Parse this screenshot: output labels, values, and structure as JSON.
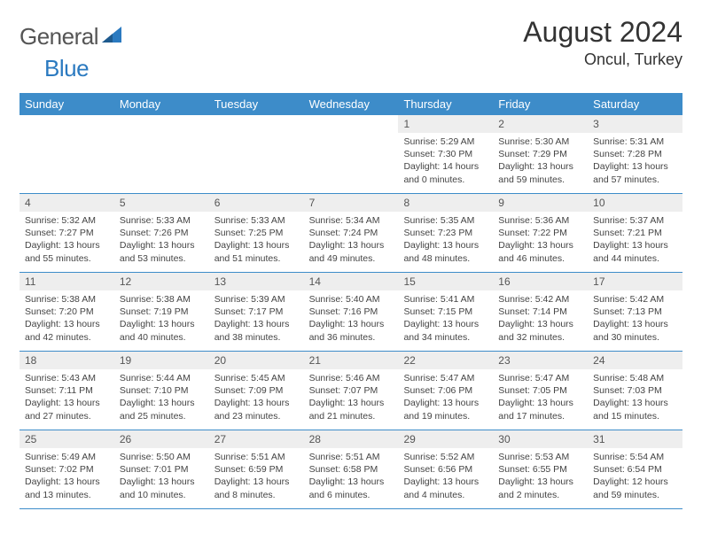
{
  "logo": {
    "text1": "General",
    "text2": "Blue"
  },
  "title": "August 2024",
  "location": "Oncul, Turkey",
  "colors": {
    "header_bg": "#3d8cc9",
    "header_text": "#ffffff",
    "daynum_bg": "#eeeeee",
    "daynum_text": "#555555",
    "detail_text": "#444444",
    "week_border": "#3d8cc9",
    "logo_gray": "#555555",
    "logo_blue": "#2b7ac0"
  },
  "day_names": [
    "Sunday",
    "Monday",
    "Tuesday",
    "Wednesday",
    "Thursday",
    "Friday",
    "Saturday"
  ],
  "weeks": [
    [
      null,
      null,
      null,
      null,
      {
        "n": "1",
        "sr": "5:29 AM",
        "ss": "7:30 PM",
        "dl": "14 hours and 0 minutes."
      },
      {
        "n": "2",
        "sr": "5:30 AM",
        "ss": "7:29 PM",
        "dl": "13 hours and 59 minutes."
      },
      {
        "n": "3",
        "sr": "5:31 AM",
        "ss": "7:28 PM",
        "dl": "13 hours and 57 minutes."
      }
    ],
    [
      {
        "n": "4",
        "sr": "5:32 AM",
        "ss": "7:27 PM",
        "dl": "13 hours and 55 minutes."
      },
      {
        "n": "5",
        "sr": "5:33 AM",
        "ss": "7:26 PM",
        "dl": "13 hours and 53 minutes."
      },
      {
        "n": "6",
        "sr": "5:33 AM",
        "ss": "7:25 PM",
        "dl": "13 hours and 51 minutes."
      },
      {
        "n": "7",
        "sr": "5:34 AM",
        "ss": "7:24 PM",
        "dl": "13 hours and 49 minutes."
      },
      {
        "n": "8",
        "sr": "5:35 AM",
        "ss": "7:23 PM",
        "dl": "13 hours and 48 minutes."
      },
      {
        "n": "9",
        "sr": "5:36 AM",
        "ss": "7:22 PM",
        "dl": "13 hours and 46 minutes."
      },
      {
        "n": "10",
        "sr": "5:37 AM",
        "ss": "7:21 PM",
        "dl": "13 hours and 44 minutes."
      }
    ],
    [
      {
        "n": "11",
        "sr": "5:38 AM",
        "ss": "7:20 PM",
        "dl": "13 hours and 42 minutes."
      },
      {
        "n": "12",
        "sr": "5:38 AM",
        "ss": "7:19 PM",
        "dl": "13 hours and 40 minutes."
      },
      {
        "n": "13",
        "sr": "5:39 AM",
        "ss": "7:17 PM",
        "dl": "13 hours and 38 minutes."
      },
      {
        "n": "14",
        "sr": "5:40 AM",
        "ss": "7:16 PM",
        "dl": "13 hours and 36 minutes."
      },
      {
        "n": "15",
        "sr": "5:41 AM",
        "ss": "7:15 PM",
        "dl": "13 hours and 34 minutes."
      },
      {
        "n": "16",
        "sr": "5:42 AM",
        "ss": "7:14 PM",
        "dl": "13 hours and 32 minutes."
      },
      {
        "n": "17",
        "sr": "5:42 AM",
        "ss": "7:13 PM",
        "dl": "13 hours and 30 minutes."
      }
    ],
    [
      {
        "n": "18",
        "sr": "5:43 AM",
        "ss": "7:11 PM",
        "dl": "13 hours and 27 minutes."
      },
      {
        "n": "19",
        "sr": "5:44 AM",
        "ss": "7:10 PM",
        "dl": "13 hours and 25 minutes."
      },
      {
        "n": "20",
        "sr": "5:45 AM",
        "ss": "7:09 PM",
        "dl": "13 hours and 23 minutes."
      },
      {
        "n": "21",
        "sr": "5:46 AM",
        "ss": "7:07 PM",
        "dl": "13 hours and 21 minutes."
      },
      {
        "n": "22",
        "sr": "5:47 AM",
        "ss": "7:06 PM",
        "dl": "13 hours and 19 minutes."
      },
      {
        "n": "23",
        "sr": "5:47 AM",
        "ss": "7:05 PM",
        "dl": "13 hours and 17 minutes."
      },
      {
        "n": "24",
        "sr": "5:48 AM",
        "ss": "7:03 PM",
        "dl": "13 hours and 15 minutes."
      }
    ],
    [
      {
        "n": "25",
        "sr": "5:49 AM",
        "ss": "7:02 PM",
        "dl": "13 hours and 13 minutes."
      },
      {
        "n": "26",
        "sr": "5:50 AM",
        "ss": "7:01 PM",
        "dl": "13 hours and 10 minutes."
      },
      {
        "n": "27",
        "sr": "5:51 AM",
        "ss": "6:59 PM",
        "dl": "13 hours and 8 minutes."
      },
      {
        "n": "28",
        "sr": "5:51 AM",
        "ss": "6:58 PM",
        "dl": "13 hours and 6 minutes."
      },
      {
        "n": "29",
        "sr": "5:52 AM",
        "ss": "6:56 PM",
        "dl": "13 hours and 4 minutes."
      },
      {
        "n": "30",
        "sr": "5:53 AM",
        "ss": "6:55 PM",
        "dl": "13 hours and 2 minutes."
      },
      {
        "n": "31",
        "sr": "5:54 AM",
        "ss": "6:54 PM",
        "dl": "12 hours and 59 minutes."
      }
    ]
  ],
  "labels": {
    "sunrise": "Sunrise:",
    "sunset": "Sunset:",
    "daylight": "Daylight:"
  }
}
